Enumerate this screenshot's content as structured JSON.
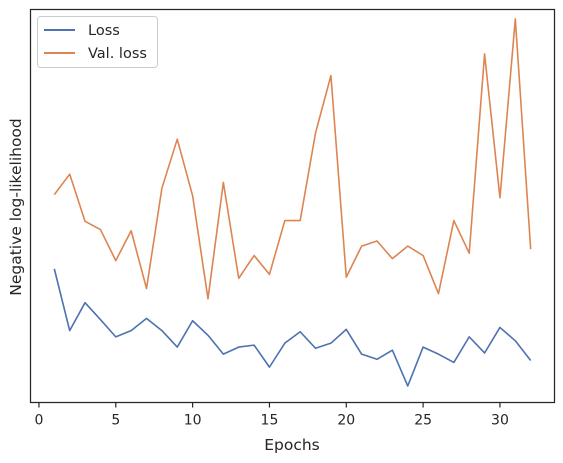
{
  "chart_data": {
    "type": "line",
    "xlabel": "Epochs",
    "ylabel": "Negative log-likelihood",
    "xlim": [
      -0.55,
      33.55
    ],
    "ylim": [
      0,
      100
    ],
    "xticks": [
      0,
      5,
      10,
      15,
      20,
      25,
      30
    ],
    "y_tick_labels_shown": false,
    "grid": false,
    "legend_position": "top-left",
    "x": [
      1,
      2,
      3,
      4,
      5,
      6,
      7,
      8,
      9,
      10,
      11,
      12,
      13,
      14,
      15,
      16,
      17,
      18,
      19,
      20,
      21,
      22,
      23,
      24,
      25,
      26,
      27,
      28,
      29,
      30,
      31,
      32
    ],
    "series": [
      {
        "name": "Loss",
        "color": "#4c72b0",
        "values": [
          34.0,
          18.3,
          25.4,
          21.1,
          16.7,
          18.3,
          21.4,
          18.3,
          14.1,
          20.8,
          17.1,
          12.3,
          14.1,
          14.6,
          9.0,
          15.1,
          18.0,
          13.8,
          15.1,
          18.6,
          12.3,
          11.0,
          13.3,
          4.2,
          14.1,
          12.3,
          10.2,
          16.7,
          12.6,
          19.1,
          15.7,
          10.7
        ]
      },
      {
        "name": "Val. loss",
        "color": "#dd8452",
        "values": [
          52.9,
          58.1,
          46.1,
          44.0,
          36.1,
          43.7,
          29.0,
          54.5,
          67.0,
          52.6,
          26.4,
          56.0,
          31.6,
          37.4,
          32.6,
          46.3,
          46.3,
          68.6,
          83.2,
          31.9,
          39.8,
          41.1,
          36.6,
          39.8,
          37.4,
          27.7,
          46.3,
          38.0,
          88.7,
          52.1,
          97.6,
          39.0
        ]
      }
    ]
  }
}
